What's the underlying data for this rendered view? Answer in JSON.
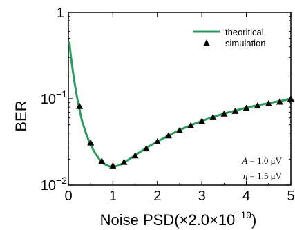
{
  "chart_data": {
    "type": "line",
    "xlabel_main": "Noise PSD(×2.0×10",
    "xlabel_exp": "−19",
    "xlabel_close": ")",
    "ylabel": "BER",
    "xlim": [
      0,
      5
    ],
    "ylim": [
      0.01,
      1
    ],
    "yscale": "log",
    "x_ticks": [
      {
        "value": 0,
        "label": "0"
      },
      {
        "value": 1,
        "label": "1"
      },
      {
        "value": 2,
        "label": "2"
      },
      {
        "value": 3,
        "label": "3"
      },
      {
        "value": 4,
        "label": "4"
      },
      {
        "value": 5,
        "label": "5"
      }
    ],
    "y_ticks": [
      {
        "value": 1,
        "label": "1",
        "exp": ""
      },
      {
        "value": 0.1,
        "label": "10",
        "exp": "−1"
      },
      {
        "value": 0.01,
        "label": "10",
        "exp": "−2"
      }
    ],
    "legend": {
      "placement": "top-right",
      "items": [
        {
          "label": "theoritical",
          "kind": "line"
        },
        {
          "label": "simulation",
          "kind": "triangle"
        }
      ]
    },
    "annotations": [
      {
        "label_prefix": "A",
        "label_suffix": " = 1.0 μV"
      },
      {
        "label_prefix": "η",
        "label_suffix": " = 1.5 μV"
      }
    ],
    "colors": {
      "theory": "#2e9a5e",
      "simulation": "#000000"
    },
    "series": [
      {
        "name": "theoritical",
        "x": [
          0.02,
          0.05,
          0.1,
          0.15,
          0.2,
          0.25,
          0.3,
          0.4,
          0.5,
          0.6,
          0.7,
          0.8,
          0.9,
          1.0,
          1.1,
          1.2,
          1.3,
          1.5,
          1.75,
          2.0,
          2.25,
          2.5,
          2.75,
          3.0,
          3.25,
          3.5,
          3.75,
          4.0,
          4.25,
          4.5,
          4.75,
          5.0
        ],
        "y": [
          0.46,
          0.33,
          0.21,
          0.14,
          0.1,
          0.075,
          0.057,
          0.039,
          0.029,
          0.0235,
          0.0198,
          0.0177,
          0.0166,
          0.0163,
          0.0167,
          0.0176,
          0.0189,
          0.0222,
          0.027,
          0.032,
          0.0375,
          0.0435,
          0.0495,
          0.0555,
          0.0615,
          0.0675,
          0.073,
          0.079,
          0.084,
          0.089,
          0.094,
          0.099
        ]
      },
      {
        "name": "simulation",
        "x": [
          0.25,
          0.5,
          0.75,
          1.0,
          1.25,
          1.5,
          1.75,
          2.0,
          2.25,
          2.5,
          2.75,
          3.0,
          3.25,
          3.5,
          3.75,
          4.0,
          4.25,
          4.5,
          4.75,
          5.0
        ],
        "y": [
          0.082,
          0.031,
          0.019,
          0.0168,
          0.0185,
          0.022,
          0.0265,
          0.032,
          0.0375,
          0.043,
          0.049,
          0.055,
          0.061,
          0.067,
          0.072,
          0.078,
          0.083,
          0.088,
          0.092,
          0.1
        ]
      }
    ]
  }
}
